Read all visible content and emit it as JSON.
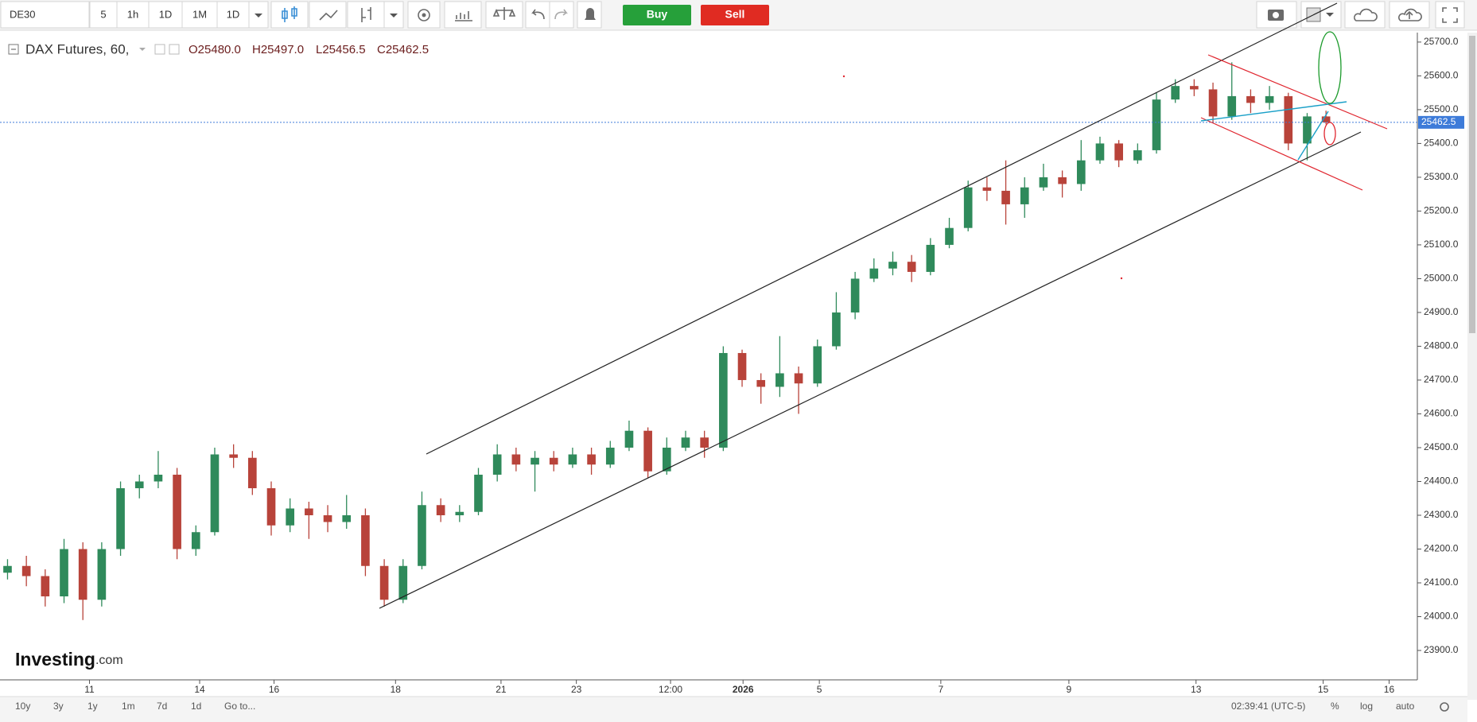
{
  "toolbar": {
    "symbol": "DE30",
    "intervals": [
      "5",
      "1h",
      "1D",
      "1M",
      "1D"
    ],
    "buy": "Buy",
    "sell": "Sell"
  },
  "chart_data": {
    "type": "candlestick",
    "title": "DAX Futures, 60,",
    "legend_values": [
      "O25480.0",
      "H25497.0",
      "L25456.5",
      "C25462.5"
    ],
    "logo": [
      "Investing",
      ".com"
    ],
    "up_color": "#2f8a5b",
    "down_color": "#b8433a",
    "last_price_color": "#3d7bd9",
    "x": [
      0,
      1,
      2,
      3,
      4,
      5,
      6,
      7,
      8,
      9,
      10,
      11,
      12,
      13,
      14,
      15,
      16,
      17,
      18,
      19,
      20,
      21,
      22,
      23,
      24,
      25,
      26,
      27,
      28,
      29,
      30,
      31,
      32,
      33,
      34,
      35,
      36,
      37,
      38,
      39,
      40,
      41,
      42,
      43,
      44,
      45,
      46,
      47,
      48,
      49,
      50,
      51,
      52,
      53,
      54,
      55,
      56,
      57,
      58,
      59,
      60,
      61,
      62,
      63,
      64,
      65,
      66,
      67,
      68,
      69,
      70
    ],
    "open": [
      24130,
      24150,
      24120,
      24060,
      24200,
      24050,
      24200,
      24380,
      24400,
      24420,
      24200,
      24250,
      24480,
      24470,
      24380,
      24270,
      24320,
      24300,
      24280,
      24300,
      24150,
      24050,
      24150,
      24330,
      24300,
      24310,
      24420,
      24480,
      24450,
      24470,
      24450,
      24480,
      24450,
      24500,
      24550,
      24430,
      24500,
      24530,
      24500,
      24780,
      24700,
      24680,
      24720,
      24690,
      24800,
      24900,
      25000,
      25030,
      25050,
      25020,
      25100,
      25150,
      25270,
      25260,
      25220,
      25270,
      25300,
      25280,
      25350,
      25400,
      25350,
      25380,
      25530,
      25570,
      25560,
      25480,
      25540,
      25520,
      25540,
      25400,
      25480
    ],
    "high": [
      24170,
      24180,
      24140,
      24230,
      24220,
      24220,
      24400,
      24420,
      24490,
      24440,
      24270,
      24500,
      24510,
      24490,
      24400,
      24350,
      24340,
      24330,
      24360,
      24320,
      24170,
      24170,
      24370,
      24350,
      24330,
      24440,
      24510,
      24500,
      24490,
      24490,
      24500,
      24500,
      24520,
      24580,
      24560,
      24530,
      24550,
      24550,
      24800,
      24790,
      24720,
      24830,
      24740,
      24820,
      24960,
      25020,
      25060,
      25080,
      25070,
      25120,
      25180,
      25290,
      25300,
      25350,
      25300,
      25340,
      25320,
      25410,
      25420,
      25410,
      25400,
      25550,
      25590,
      25590,
      25580,
      25640,
      25560,
      25570,
      25550,
      25490,
      25497
    ],
    "low": [
      24110,
      24090,
      24030,
      24040,
      23990,
      24030,
      24180,
      24350,
      24380,
      24170,
      24180,
      24240,
      24440,
      24360,
      24240,
      24250,
      24230,
      24250,
      24260,
      24120,
      24030,
      24040,
      24140,
      24280,
      24280,
      24300,
      24400,
      24430,
      24370,
      24430,
      24440,
      24420,
      24440,
      24490,
      24410,
      24420,
      24490,
      24470,
      24490,
      24680,
      24630,
      24650,
      24600,
      24680,
      24790,
      24880,
      24990,
      25010,
      24990,
      25010,
      25090,
      25140,
      25230,
      25160,
      25180,
      25260,
      25240,
      25260,
      25340,
      25330,
      25340,
      25370,
      25520,
      25540,
      25460,
      25470,
      25490,
      25500,
      25380,
      25350,
      25456.5
    ],
    "close": [
      24150,
      24120,
      24060,
      24200,
      24050,
      24200,
      24380,
      24400,
      24420,
      24200,
      24250,
      24480,
      24470,
      24380,
      24270,
      24320,
      24300,
      24280,
      24300,
      24150,
      24050,
      24150,
      24330,
      24300,
      24310,
      24420,
      24480,
      24450,
      24470,
      24450,
      24480,
      24450,
      24500,
      24550,
      24430,
      24500,
      24530,
      24500,
      24780,
      24700,
      24680,
      24720,
      24690,
      24800,
      24900,
      25000,
      25030,
      25050,
      25020,
      25100,
      25150,
      25270,
      25260,
      25220,
      25270,
      25300,
      25280,
      25350,
      25400,
      25350,
      25380,
      25530,
      25570,
      25560,
      25480,
      25540,
      25520,
      25540,
      25400,
      25480,
      25462.5
    ],
    "xlim": [
      -0.4,
      74.85
    ],
    "xticks": [
      {
        "value": 4.35,
        "label": "11"
      },
      {
        "value": 10.2,
        "label": "14"
      },
      {
        "value": 14.15,
        "label": "16"
      },
      {
        "value": 20.6,
        "label": "18"
      },
      {
        "value": 26.2,
        "label": "21"
      },
      {
        "value": 30.2,
        "label": "23"
      },
      {
        "value": 35.2,
        "label": "12:00"
      },
      {
        "value": 39.05,
        "label": "2026"
      },
      {
        "value": 43.1,
        "label": "5"
      },
      {
        "value": 49.55,
        "label": "7"
      },
      {
        "value": 56.35,
        "label": "9"
      },
      {
        "value": 63.1,
        "label": "13"
      },
      {
        "value": 69.85,
        "label": "15"
      },
      {
        "value": 73.35,
        "label": "16"
      }
    ],
    "ylim": [
      23813,
      25728
    ],
    "yticks": [
      {
        "value": 23900,
        "label": "23900.0"
      },
      {
        "value": 24000,
        "label": "24000.0"
      },
      {
        "value": 24100,
        "label": "24100.0"
      },
      {
        "value": 24200,
        "label": "24200.0"
      },
      {
        "value": 24300,
        "label": "24300.0"
      },
      {
        "value": 24400,
        "label": "24400.0"
      },
      {
        "value": 24500,
        "label": "24500.0"
      },
      {
        "value": 24600,
        "label": "24600.0"
      },
      {
        "value": 24700,
        "label": "24700.0"
      },
      {
        "value": 24800,
        "label": "24800.0"
      },
      {
        "value": 24900,
        "label": "24900.0"
      },
      {
        "value": 25000,
        "label": "25000.0"
      },
      {
        "value": 25100,
        "label": "25100.0"
      },
      {
        "value": 25200,
        "label": "25200.0"
      },
      {
        "value": 25300,
        "label": "25300.0"
      },
      {
        "value": 25400,
        "label": "25400.0"
      },
      {
        "value": 25500,
        "label": "25500.0"
      },
      {
        "value": 25600,
        "label": "25600.0"
      },
      {
        "value": 25700,
        "label": "25700.0"
      }
    ],
    "grid": false
  },
  "footer": {
    "ranges": [
      "10y",
      "3y",
      "1y",
      "1m",
      "7d",
      "1d",
      "Go to..."
    ],
    "clock": "02:39:41 (UTC-5)",
    "options": [
      "%",
      "log",
      "auto"
    ]
  }
}
